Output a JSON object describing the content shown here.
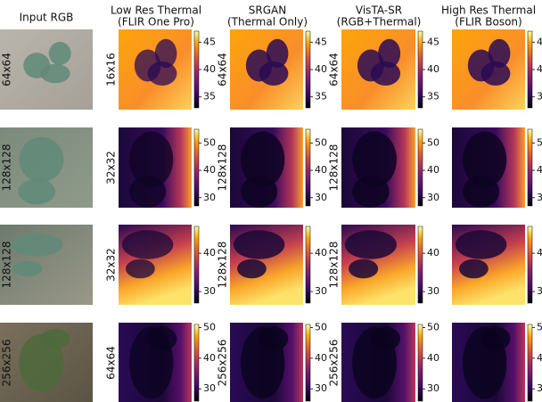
{
  "columns": [
    {
      "title": [
        "Input RGB"
      ]
    },
    {
      "title": [
        "Low Res Thermal",
        "(FLIR One Pro)"
      ]
    },
    {
      "title": [
        "SRGAN",
        "(Thermal Only)"
      ]
    },
    {
      "title": [
        "VisTA-SR",
        "(RGB+Thermal)"
      ]
    },
    {
      "title": [
        "High Res Thermal",
        "(FLIR Boson)"
      ]
    }
  ],
  "rows": [
    {
      "labels": [
        "64x64",
        "16x16",
        "64x64",
        "64x64"
      ],
      "colorbar": {
        "lim": [
          33,
          47
        ],
        "ticks": [
          35,
          40,
          45
        ]
      }
    },
    {
      "labels": [
        "128x128",
        "32x32",
        "128x128",
        "128x128"
      ],
      "colorbar": {
        "lim": [
          27,
          55
        ],
        "ticks": [
          30,
          40,
          50
        ]
      }
    },
    {
      "labels": [
        "128x128",
        "32x32",
        "128x128",
        "128x128"
      ],
      "colorbar": {
        "lim": [
          27,
          47
        ],
        "ticks": [
          30,
          40
        ]
      }
    },
    {
      "labels": [
        "256x256",
        "64x64",
        "256x256",
        "256x256"
      ],
      "colorbar": {
        "lim": [
          26,
          51
        ],
        "ticks": [
          30,
          40,
          50
        ]
      }
    }
  ]
}
